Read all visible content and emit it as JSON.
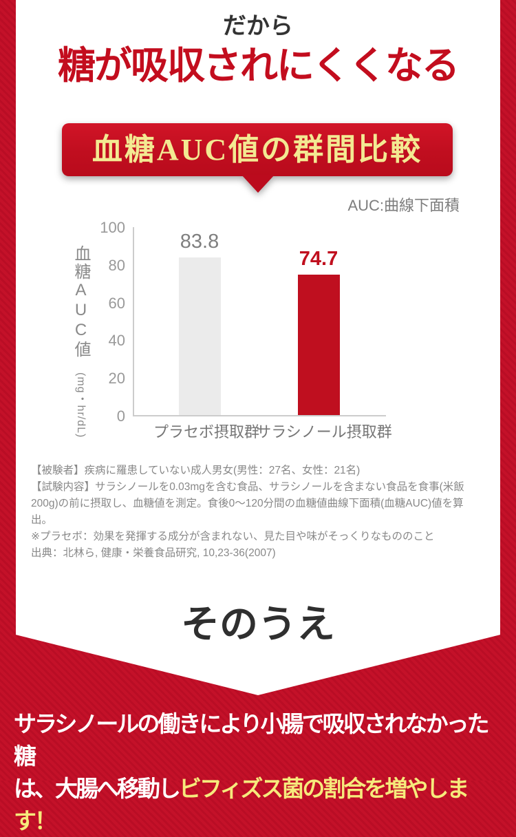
{
  "page": {
    "kicker": "だから",
    "headline": "糖が吸収されにくくなる",
    "banner_title": "血糖AUC値の群間比較",
    "auc_note": "AUC:曲線下面積",
    "sonoue": "そのうえ",
    "bottom_line1": "サラシノールの働きにより小腸で吸収されなかった糖",
    "bottom_line2_white": "は、大腸へ移動し",
    "bottom_line2_yellow": "ビフィズス菌の割合を増やします！"
  },
  "chart_data": {
    "type": "bar",
    "title": "血糖AUC値の群間比較",
    "categories": [
      "プラセボ摂取群",
      "サラシノール摂取群"
    ],
    "values": [
      83.8,
      74.7
    ],
    "bar_colors": [
      "#ebebeb",
      "#bf0f1f"
    ],
    "value_label_colors": [
      "#7f7f7f",
      "#c00f1e"
    ],
    "ylabel_main": "血糖AUC値",
    "ylabel_unit": "(mg・hr/dL)",
    "yticks": [
      100,
      80,
      60,
      40,
      20,
      0
    ],
    "ylim": [
      0,
      100
    ],
    "grid": false,
    "legend": "none",
    "annotation": "AUC:曲線下面積"
  },
  "footnote": {
    "lines": [
      "【被験者】疾病に羅患していない成人男女(男性：27名、女性：21名)",
      "【試験内容】サラシノールを0.03mgを含む食品、サラシノールを含まない食品を食事(米飯",
      "200g)の前に摂取し、血糖値を測定。食後0〜120分間の血糖値曲線下面積(血糖AUC)値を算",
      "出。",
      "※プラセボ：効果を発揮する成分が含まれない、見た目や味がそっくりなもののこと",
      "出典：北林ら, 健康・栄養食品研究, 10,23-36(2007)"
    ]
  },
  "colors": {
    "background_red": "#c41129",
    "stripe_red": "#b90d25",
    "banner_red": "#c00e1f",
    "heading_red": "#c30d1e",
    "bar_red": "#bf0f1f",
    "banner_yellow": "#f3e992",
    "bottom_yellow": "#f6ea7c"
  }
}
